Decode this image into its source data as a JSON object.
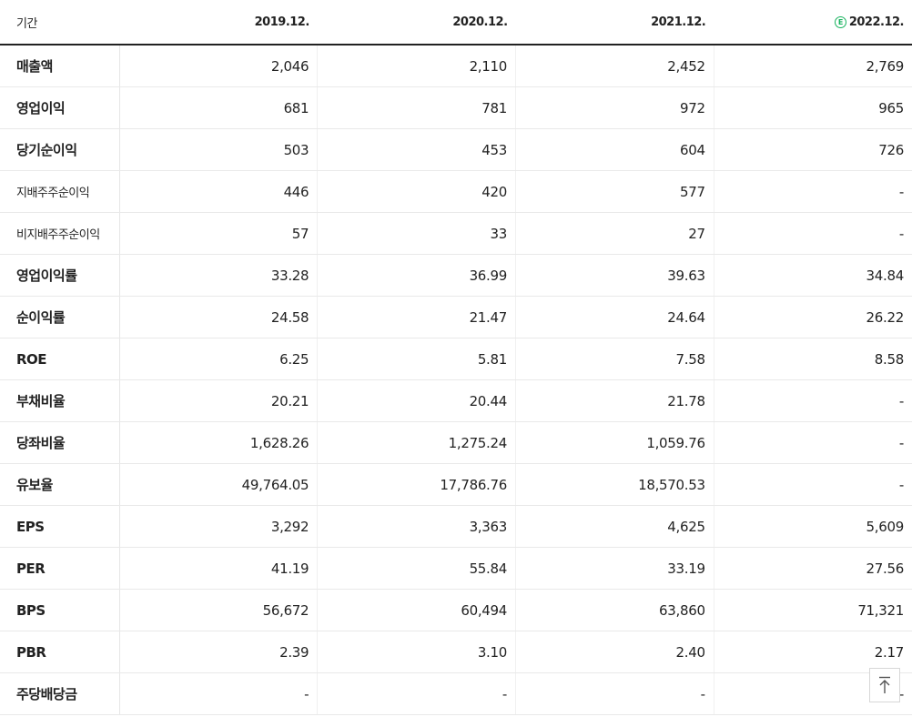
{
  "header": {
    "period_label": "기간",
    "years": [
      "2019.12.",
      "2020.12.",
      "2021.12.",
      "2022.12."
    ],
    "estimate_badge": "E",
    "estimate_color": "#19b35f"
  },
  "rows": [
    {
      "label": "매출액",
      "values": [
        "2,046",
        "2,110",
        "2,452",
        "2,769"
      ]
    },
    {
      "label": "영업이익",
      "values": [
        "681",
        "781",
        "972",
        "965"
      ]
    },
    {
      "label": "당기순이익",
      "values": [
        "503",
        "453",
        "604",
        "726"
      ]
    },
    {
      "label": "지배주주순이익",
      "values": [
        "446",
        "420",
        "577",
        "-"
      ]
    },
    {
      "label": "비지배주주순이익",
      "values": [
        "57",
        "33",
        "27",
        "-"
      ]
    },
    {
      "label": "영업이익률",
      "values": [
        "33.28",
        "36.99",
        "39.63",
        "34.84"
      ]
    },
    {
      "label": "순이익률",
      "values": [
        "24.58",
        "21.47",
        "24.64",
        "26.22"
      ]
    },
    {
      "label": "ROE",
      "values": [
        "6.25",
        "5.81",
        "7.58",
        "8.58"
      ]
    },
    {
      "label": "부채비율",
      "values": [
        "20.21",
        "20.44",
        "21.78",
        "-"
      ]
    },
    {
      "label": "당좌비율",
      "values": [
        "1,628.26",
        "1,275.24",
        "1,059.76",
        "-"
      ]
    },
    {
      "label": "유보율",
      "values": [
        "49,764.05",
        "17,786.76",
        "18,570.53",
        "-"
      ]
    },
    {
      "label": "EPS",
      "values": [
        "3,292",
        "3,363",
        "4,625",
        "5,609"
      ]
    },
    {
      "label": "PER",
      "values": [
        "41.19",
        "55.84",
        "33.19",
        "27.56"
      ]
    },
    {
      "label": "BPS",
      "values": [
        "56,672",
        "60,494",
        "63,860",
        "71,321"
      ]
    },
    {
      "label": "PBR",
      "values": [
        "2.39",
        "3.10",
        "2.40",
        "2.17"
      ]
    },
    {
      "label": "주당배당금",
      "values": [
        "-",
        "-",
        "-",
        "-"
      ]
    }
  ],
  "scroll_top_icon": "arrow-up-to-top-icon"
}
